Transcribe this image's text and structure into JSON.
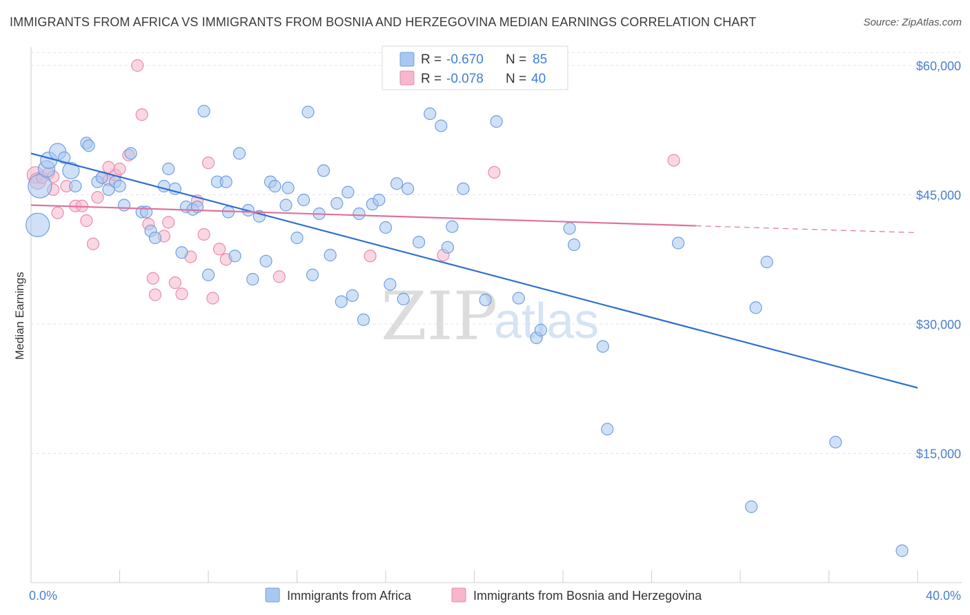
{
  "header": {
    "title": "IMMIGRANTS FROM AFRICA VS IMMIGRANTS FROM BOSNIA AND HERZEGOVINA MEDIAN EARNINGS CORRELATION CHART",
    "source": "Source: ZipAtlas.com"
  },
  "watermark": {
    "zip": "ZIP",
    "atlas": "atlas"
  },
  "legend": {
    "r_label": "R =",
    "n_label": "N =",
    "items": [
      {
        "r": "-0.670",
        "n": "85",
        "color": "#a9c8f0"
      },
      {
        "r": "-0.078",
        "n": "40",
        "color": "#f6b6cb"
      }
    ]
  },
  "bottom_legend": [
    {
      "label": "Immigrants from Africa",
      "color": "#a9c8f0"
    },
    {
      "label": "Immigrants from Bosnia and Herzegovina",
      "color": "#f6b6cb"
    }
  ],
  "chart_data": {
    "type": "scatter",
    "title": "IMMIGRANTS FROM AFRICA VS IMMIGRANTS FROM BOSNIA AND HERZEGOVINA MEDIAN EARNINGS CORRELATION CHART",
    "xlabel": "",
    "ylabel": "Median Earnings",
    "xlim": [
      0,
      40
    ],
    "ylim": [
      0,
      62000
    ],
    "x_tick_labels": [
      "0.0%",
      "40.0%"
    ],
    "y_ticks": [
      15000,
      30000,
      45000,
      60000
    ],
    "y_tick_labels": [
      "$15,000",
      "$30,000",
      "$45,000",
      "$60,000"
    ],
    "grid": true,
    "legend_position": "top-center",
    "series": [
      {
        "name": "Immigrants from Africa",
        "color": "#6d9fe0",
        "fill": "#a9c8f0",
        "trend": {
          "x": [
            0,
            40
          ],
          "y": [
            49800,
            22600
          ],
          "dashed_from": null
        },
        "points": [
          [
            0.3,
            41500,
            3
          ],
          [
            0.4,
            46000,
            3
          ],
          [
            0.7,
            48000,
            2
          ],
          [
            0.8,
            49000,
            2
          ],
          [
            1.2,
            50000,
            2
          ],
          [
            1.5,
            49300,
            1
          ],
          [
            2.0,
            46000,
            1
          ],
          [
            1.8,
            47800,
            2
          ],
          [
            2.5,
            51000,
            1
          ],
          [
            2.6,
            50700,
            1
          ],
          [
            3.0,
            46500,
            1
          ],
          [
            3.2,
            47000,
            1
          ],
          [
            3.5,
            45600,
            1
          ],
          [
            3.8,
            46500,
            1
          ],
          [
            4.0,
            46000,
            1
          ],
          [
            4.2,
            43800,
            1
          ],
          [
            4.5,
            49800,
            1
          ],
          [
            5.0,
            43000,
            1
          ],
          [
            5.2,
            43000,
            1
          ],
          [
            5.4,
            40800,
            1
          ],
          [
            5.6,
            40000,
            1
          ],
          [
            6.0,
            46000,
            1
          ],
          [
            6.2,
            48000,
            1
          ],
          [
            6.5,
            45700,
            1
          ],
          [
            6.8,
            38300,
            1
          ],
          [
            7.0,
            43600,
            1
          ],
          [
            7.3,
            43300,
            1
          ],
          [
            7.5,
            43600,
            1
          ],
          [
            7.8,
            54700,
            1
          ],
          [
            8.0,
            35700,
            1
          ],
          [
            8.4,
            46500,
            1
          ],
          [
            8.8,
            46500,
            1
          ],
          [
            8.9,
            43000,
            1
          ],
          [
            9.2,
            37900,
            1
          ],
          [
            9.4,
            49800,
            1
          ],
          [
            9.8,
            43200,
            1
          ],
          [
            10.0,
            35200,
            1
          ],
          [
            10.3,
            42500,
            1
          ],
          [
            10.6,
            37300,
            1
          ],
          [
            10.8,
            46500,
            1
          ],
          [
            11.0,
            46000,
            1
          ],
          [
            11.5,
            43800,
            1
          ],
          [
            11.6,
            45800,
            1
          ],
          [
            12.0,
            40000,
            1
          ],
          [
            12.3,
            44400,
            1
          ],
          [
            12.5,
            54600,
            1
          ],
          [
            12.7,
            35700,
            1
          ],
          [
            13.0,
            42800,
            1
          ],
          [
            13.2,
            47800,
            1
          ],
          [
            13.5,
            38000,
            1
          ],
          [
            13.8,
            44000,
            1
          ],
          [
            14.0,
            32600,
            1
          ],
          [
            14.3,
            45300,
            1
          ],
          [
            14.5,
            33300,
            1
          ],
          [
            14.8,
            42800,
            1
          ],
          [
            15.0,
            30500,
            1
          ],
          [
            15.4,
            43900,
            1
          ],
          [
            15.7,
            44400,
            1
          ],
          [
            16.0,
            41200,
            1
          ],
          [
            16.2,
            34600,
            1
          ],
          [
            16.5,
            46300,
            1
          ],
          [
            16.8,
            32900,
            1
          ],
          [
            17.0,
            45700,
            1
          ],
          [
            17.5,
            39500,
            1
          ],
          [
            18.0,
            54400,
            1
          ],
          [
            18.5,
            53000,
            1
          ],
          [
            18.8,
            38900,
            1
          ],
          [
            19.0,
            41300,
            1
          ],
          [
            19.5,
            45700,
            1
          ],
          [
            20.5,
            32800,
            1
          ],
          [
            21.0,
            53500,
            1
          ],
          [
            22.0,
            33000,
            1
          ],
          [
            22.8,
            28400,
            1
          ],
          [
            23.0,
            29300,
            1
          ],
          [
            24.3,
            41100,
            1
          ],
          [
            24.5,
            39200,
            1
          ],
          [
            25.8,
            27400,
            1
          ],
          [
            26.0,
            17800,
            1
          ],
          [
            29.2,
            39400,
            1
          ],
          [
            32.5,
            8800,
            1
          ],
          [
            32.7,
            31900,
            1
          ],
          [
            33.2,
            37200,
            1
          ],
          [
            36.3,
            16300,
            1
          ],
          [
            39.3,
            3700,
            1
          ]
        ]
      },
      {
        "name": "Immigrants from Bosnia and Herzegovina",
        "color": "#e88aab",
        "fill": "#f6b6cb",
        "trend": {
          "x": [
            0,
            40
          ],
          "y": [
            43800,
            40600
          ],
          "dashed_from": 30
        },
        "points": [
          [
            0.2,
            47300,
            2
          ],
          [
            0.3,
            46600,
            2
          ],
          [
            0.5,
            47000,
            1
          ],
          [
            0.8,
            47500,
            1
          ],
          [
            1.0,
            45600,
            1
          ],
          [
            1.0,
            47100,
            1
          ],
          [
            1.2,
            42900,
            1
          ],
          [
            1.6,
            46000,
            1
          ],
          [
            2.0,
            43700,
            1
          ],
          [
            2.3,
            43700,
            1
          ],
          [
            2.5,
            42000,
            1
          ],
          [
            2.8,
            39300,
            1
          ],
          [
            3.0,
            44700,
            1
          ],
          [
            3.2,
            47000,
            1
          ],
          [
            3.5,
            46700,
            1
          ],
          [
            3.8,
            47300,
            1
          ],
          [
            4.0,
            48000,
            1
          ],
          [
            4.4,
            49600,
            1
          ],
          [
            4.8,
            60000,
            1
          ],
          [
            5.0,
            54300,
            1
          ],
          [
            5.3,
            41600,
            1
          ],
          [
            5.5,
            35300,
            1
          ],
          [
            5.6,
            33400,
            1
          ],
          [
            6.0,
            40200,
            1
          ],
          [
            6.2,
            41800,
            1
          ],
          [
            6.5,
            34800,
            1
          ],
          [
            6.8,
            33500,
            1
          ],
          [
            7.2,
            37800,
            1
          ],
          [
            7.5,
            44300,
            1
          ],
          [
            7.8,
            40400,
            1
          ],
          [
            8.0,
            48700,
            1
          ],
          [
            8.2,
            33000,
            1
          ],
          [
            8.5,
            38700,
            1
          ],
          [
            8.8,
            37500,
            1
          ],
          [
            11.2,
            35500,
            1
          ],
          [
            15.3,
            37900,
            1
          ],
          [
            18.6,
            38000,
            1
          ],
          [
            20.9,
            47600,
            1
          ],
          [
            29.0,
            49000,
            1
          ],
          [
            3.5,
            48200,
            1
          ]
        ]
      }
    ]
  }
}
